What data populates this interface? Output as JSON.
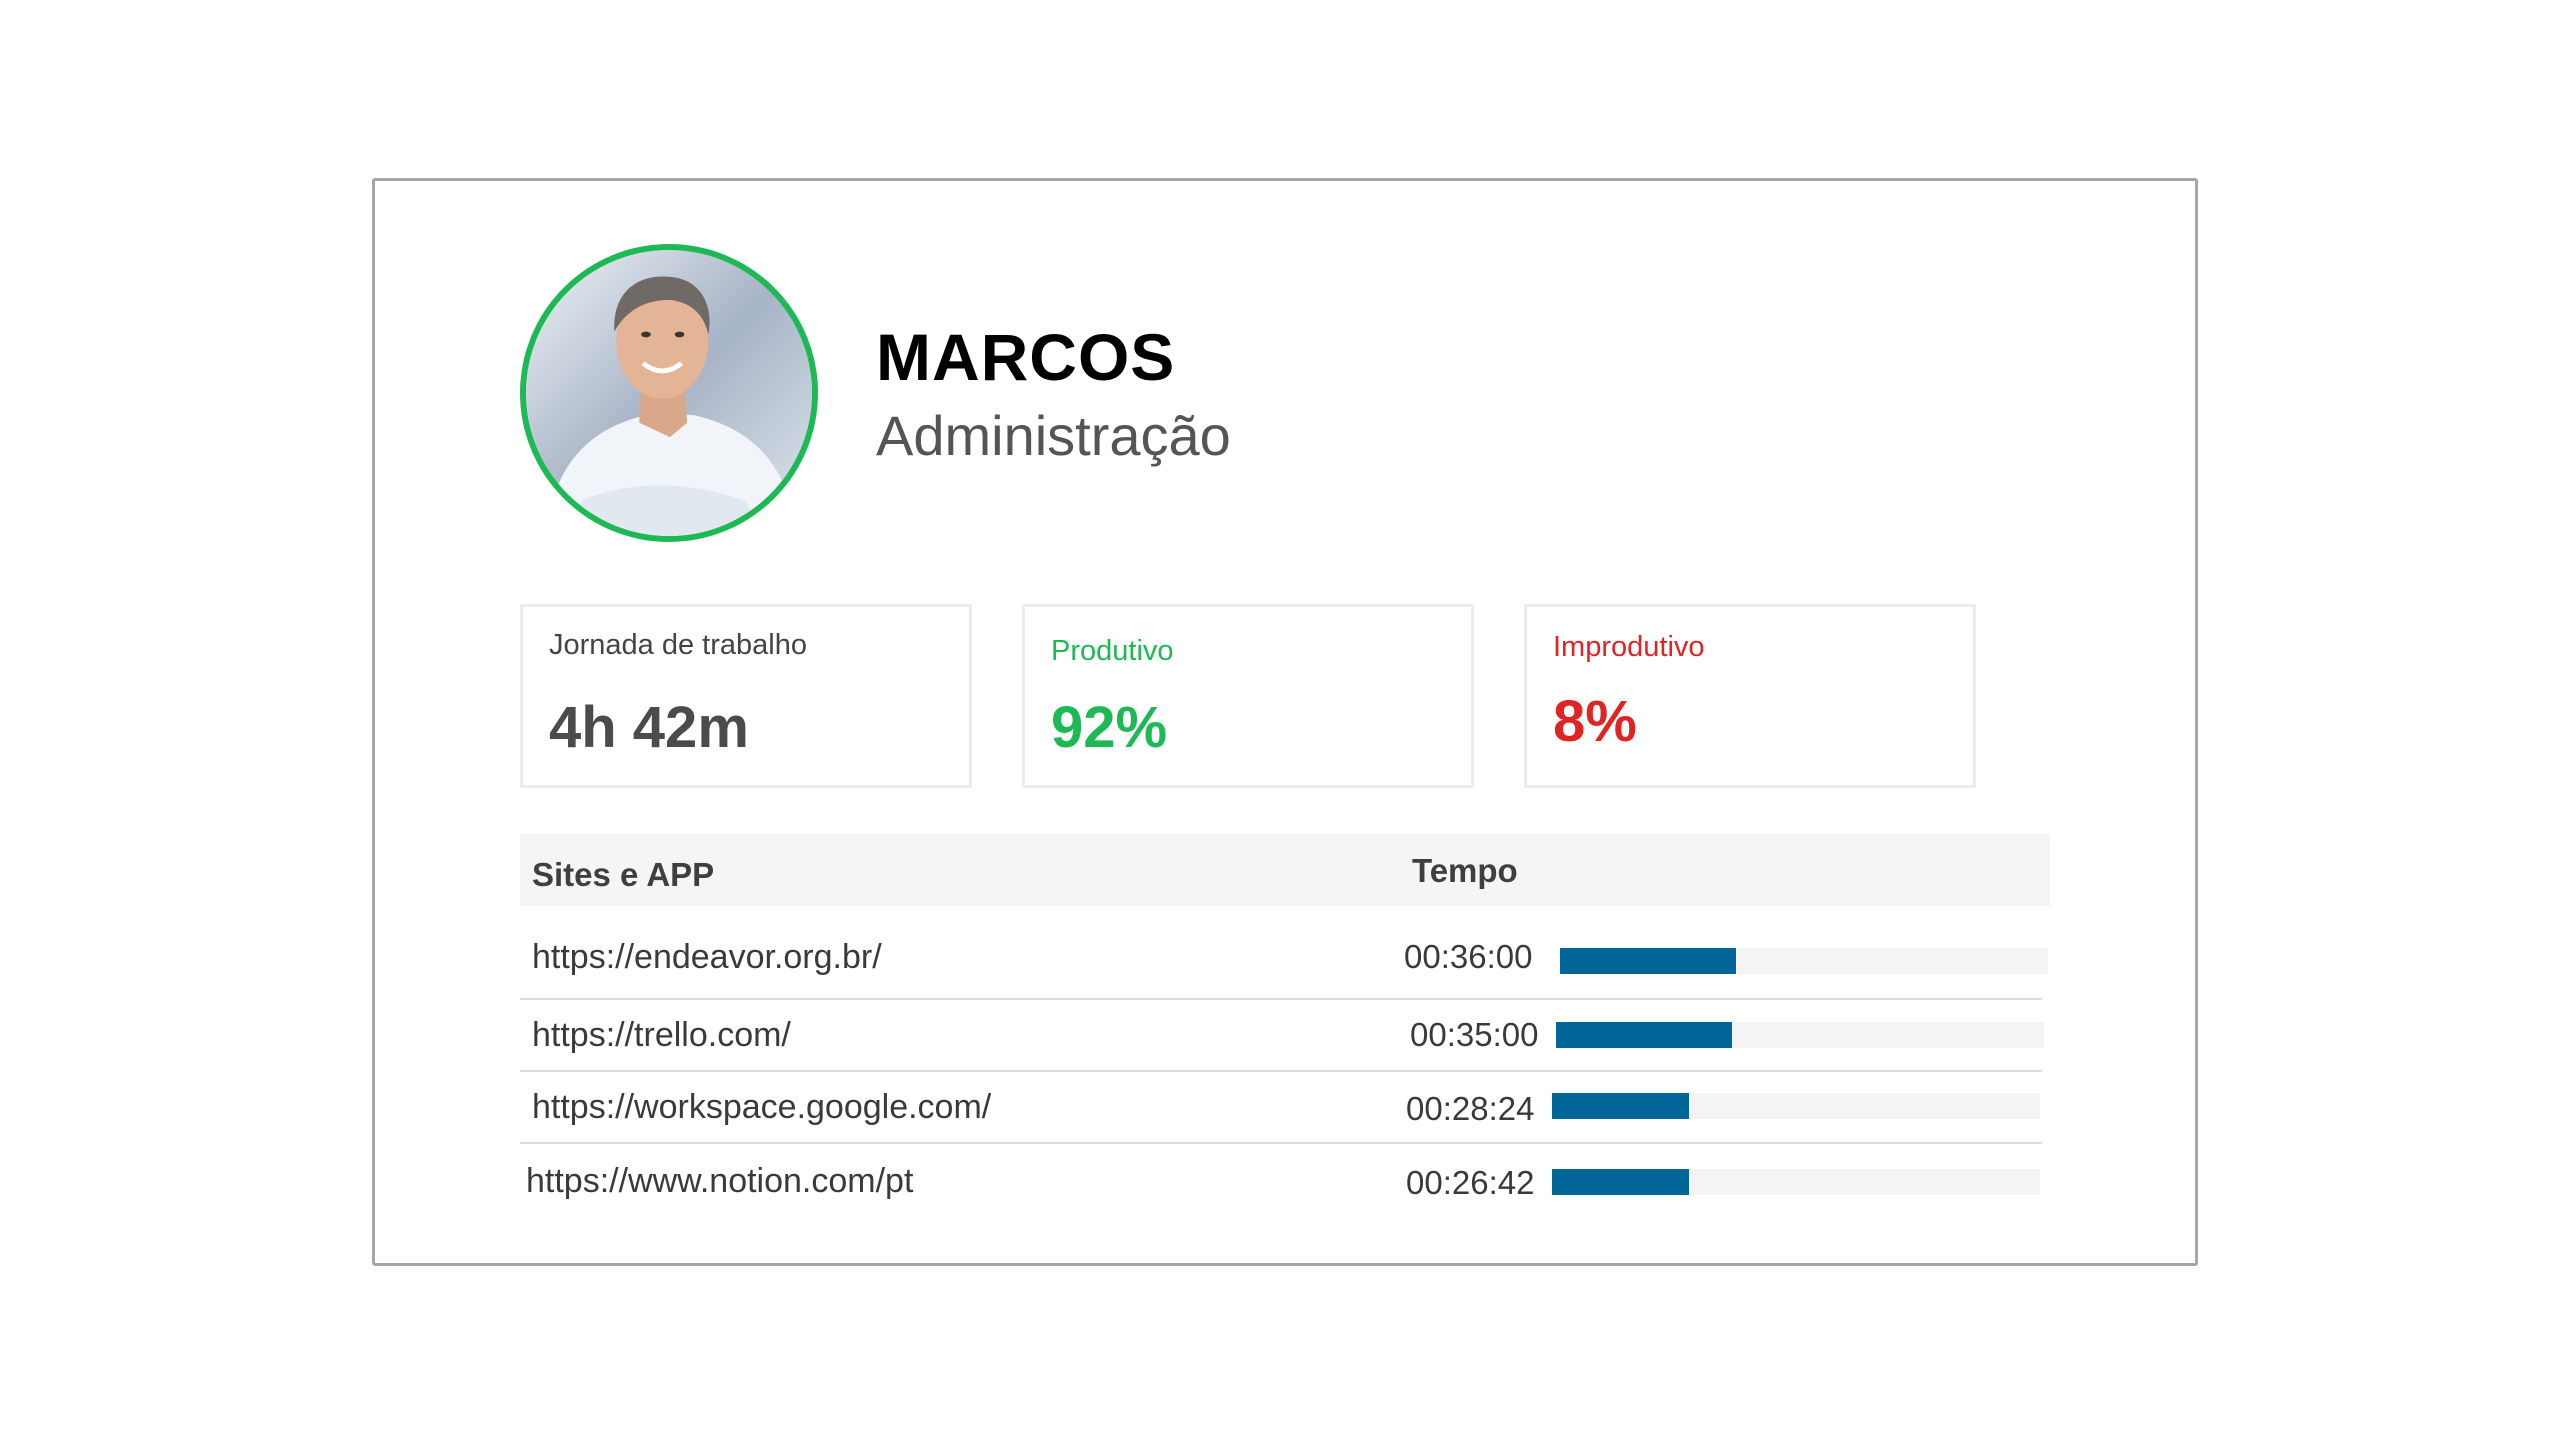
{
  "profile": {
    "name": "MARCOS",
    "department": "Administração"
  },
  "stats": {
    "workday": {
      "label": "Jornada de trabalho",
      "value": "4h 42m"
    },
    "productive": {
      "label": "Produtivo",
      "value": "92%",
      "color": "#1db954"
    },
    "unproductive": {
      "label": "Improdutivo",
      "value": "8%",
      "color": "#e02424"
    }
  },
  "table": {
    "headers": {
      "site": "Sites e APP",
      "time": "Tempo"
    },
    "bar_color": "#036699",
    "rows": [
      {
        "url": "https://endeavor.org.br/",
        "time": "00:36:00",
        "fraction": 0.36
      },
      {
        "url": "https://trello.com/",
        "time": "00:35:00",
        "fraction": 0.36
      },
      {
        "url": "https://workspace.google.com/",
        "time": "00:28:24",
        "fraction": 0.28
      },
      {
        "url": "https://www.notion.com/pt",
        "time": "00:26:42",
        "fraction": 0.28
      }
    ]
  }
}
